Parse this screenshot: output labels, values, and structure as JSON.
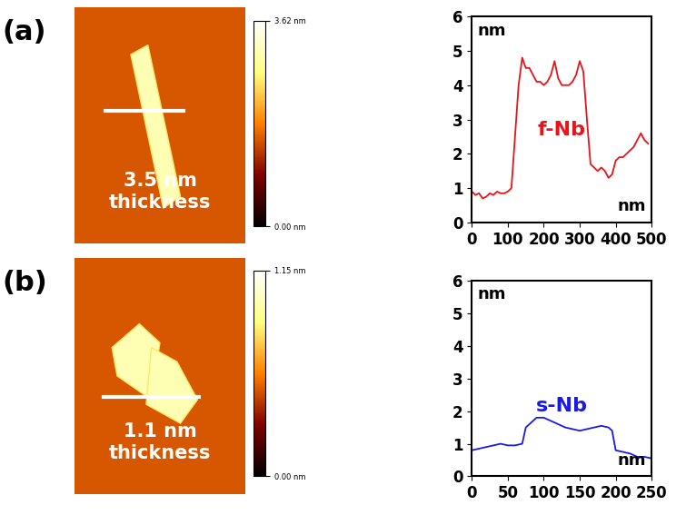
{
  "chart_data": [
    {
      "type": "image",
      "title": "(a)",
      "annotation": "3.5 nm\nthickness",
      "colorbar_range": [
        0,
        3.62
      ],
      "colorbar_ticks": [
        {
          "value": 0,
          "label": "0.00 nm"
        },
        {
          "value": 3.62,
          "label": "3.62 nm"
        }
      ]
    },
    {
      "type": "line",
      "x_label": "nm",
      "y_label": "nm",
      "xlim": [
        0,
        500
      ],
      "xticks": [
        0,
        100,
        200,
        300,
        400,
        500
      ],
      "ylim": [
        0,
        6
      ],
      "yticks": [
        0,
        1,
        2,
        3,
        4,
        5,
        6
      ],
      "series": [
        {
          "name": "f-Nb",
          "color": "#e8141a",
          "x": [
            0,
            10,
            20,
            30,
            40,
            50,
            60,
            70,
            80,
            90,
            100,
            110,
            120,
            130,
            140,
            150,
            160,
            170,
            180,
            190,
            200,
            210,
            220,
            230,
            240,
            250,
            260,
            270,
            280,
            290,
            300,
            310,
            320,
            330,
            340,
            350,
            360,
            370,
            380,
            390,
            400,
            410,
            420,
            430,
            440,
            450,
            460,
            470,
            480,
            490
          ],
          "values": [
            0.9,
            0.8,
            0.85,
            0.7,
            0.75,
            0.85,
            0.8,
            0.9,
            0.85,
            0.85,
            0.9,
            1.0,
            2.5,
            4.0,
            4.8,
            4.5,
            4.5,
            4.3,
            4.1,
            4.1,
            4.0,
            4.1,
            4.3,
            4.7,
            4.2,
            4.0,
            4.0,
            4.0,
            4.1,
            4.3,
            4.7,
            4.4,
            3.0,
            1.7,
            1.6,
            1.5,
            1.6,
            1.5,
            1.3,
            1.4,
            1.8,
            1.9,
            1.9,
            2.0,
            2.1,
            2.2,
            2.4,
            2.6,
            2.4,
            2.3
          ]
        }
      ]
    },
    {
      "type": "image",
      "title": "(b)",
      "annotation": "1.1 nm\nthickness",
      "colorbar_range": [
        0,
        1.15
      ],
      "colorbar_ticks": [
        {
          "value": 0,
          "label": "0.00 nm"
        },
        {
          "value": 1.15,
          "label": "1.15 nm"
        }
      ]
    },
    {
      "type": "line",
      "x_label": "nm",
      "y_label": "nm",
      "xlim": [
        0,
        250
      ],
      "xticks": [
        0,
        50,
        100,
        150,
        200,
        250
      ],
      "ylim": [
        0,
        6
      ],
      "yticks": [
        0,
        1,
        2,
        3,
        4,
        5,
        6
      ],
      "series": [
        {
          "name": "s-Nb",
          "color": "#1a1ae8",
          "x": [
            0,
            10,
            20,
            30,
            40,
            50,
            60,
            70,
            75,
            80,
            90,
            100,
            110,
            120,
            130,
            140,
            150,
            160,
            170,
            180,
            190,
            195,
            200,
            210,
            220,
            230,
            240,
            250
          ],
          "values": [
            0.8,
            0.85,
            0.9,
            0.95,
            1.0,
            0.95,
            0.95,
            1.0,
            1.5,
            1.6,
            1.8,
            1.8,
            1.7,
            1.6,
            1.5,
            1.45,
            1.4,
            1.45,
            1.5,
            1.55,
            1.5,
            1.4,
            0.8,
            0.75,
            0.7,
            0.6,
            0.6,
            0.55
          ]
        }
      ]
    }
  ]
}
